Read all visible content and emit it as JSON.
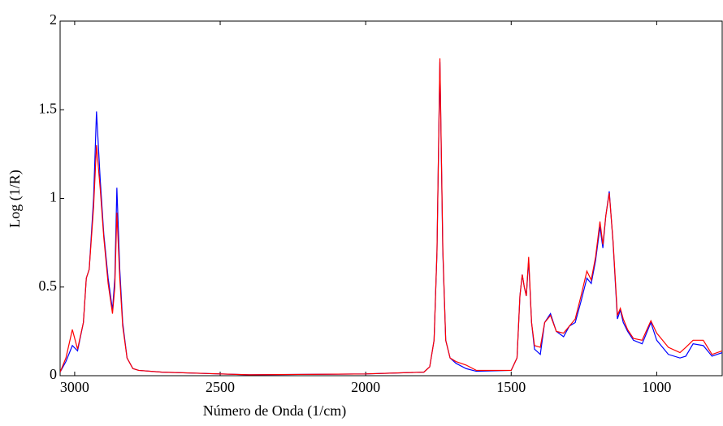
{
  "chart_data": {
    "type": "line",
    "xlabel": "Número de Onda (1/cm)",
    "ylabel": "Log (1/R)",
    "xlim": [
      3050,
      775
    ],
    "ylim": [
      0,
      2
    ],
    "xticks": [
      3000,
      2500,
      2000,
      1500,
      1000
    ],
    "yticks": [
      0,
      0.5,
      1,
      1.5,
      2
    ],
    "x": [
      3050,
      3030,
      3008,
      2990,
      2970,
      2960,
      2950,
      2935,
      2925,
      2912,
      2900,
      2885,
      2870,
      2862,
      2855,
      2845,
      2835,
      2820,
      2800,
      2780,
      2700,
      2400,
      2000,
      1800,
      1780,
      1765,
      1755,
      1745,
      1735,
      1725,
      1710,
      1690,
      1655,
      1620,
      1500,
      1480,
      1470,
      1462,
      1455,
      1448,
      1440,
      1430,
      1420,
      1400,
      1385,
      1365,
      1345,
      1320,
      1300,
      1280,
      1260,
      1240,
      1225,
      1210,
      1195,
      1185,
      1175,
      1163,
      1150,
      1135,
      1125,
      1115,
      1100,
      1080,
      1050,
      1020,
      1000,
      980,
      960,
      920,
      900,
      875,
      840,
      810,
      775
    ],
    "series": [
      {
        "name": "Blue",
        "color": "#0000ff",
        "values": [
          0.02,
          0.08,
          0.17,
          0.14,
          0.3,
          0.55,
          0.6,
          1.0,
          1.49,
          1.1,
          0.8,
          0.55,
          0.37,
          0.55,
          1.06,
          0.6,
          0.3,
          0.1,
          0.04,
          0.03,
          0.02,
          0.005,
          0.01,
          0.02,
          0.05,
          0.2,
          0.7,
          1.77,
          0.7,
          0.2,
          0.1,
          0.07,
          0.04,
          0.025,
          0.03,
          0.1,
          0.45,
          0.57,
          0.5,
          0.45,
          0.65,
          0.3,
          0.15,
          0.12,
          0.3,
          0.35,
          0.25,
          0.22,
          0.28,
          0.3,
          0.42,
          0.55,
          0.52,
          0.65,
          0.84,
          0.72,
          0.9,
          1.04,
          0.75,
          0.32,
          0.37,
          0.3,
          0.25,
          0.2,
          0.18,
          0.3,
          0.2,
          0.16,
          0.12,
          0.1,
          0.11,
          0.18,
          0.17,
          0.11,
          0.13
        ]
      },
      {
        "name": "Red",
        "color": "#ff0000",
        "values": [
          0.02,
          0.1,
          0.26,
          0.15,
          0.3,
          0.55,
          0.6,
          0.95,
          1.3,
          1.05,
          0.78,
          0.52,
          0.35,
          0.5,
          0.92,
          0.55,
          0.28,
          0.1,
          0.04,
          0.03,
          0.02,
          0.005,
          0.01,
          0.02,
          0.05,
          0.2,
          0.7,
          1.79,
          0.72,
          0.2,
          0.1,
          0.08,
          0.06,
          0.03,
          0.03,
          0.1,
          0.45,
          0.57,
          0.5,
          0.45,
          0.67,
          0.3,
          0.17,
          0.16,
          0.3,
          0.34,
          0.25,
          0.24,
          0.28,
          0.32,
          0.45,
          0.59,
          0.54,
          0.67,
          0.87,
          0.74,
          0.9,
          1.03,
          0.76,
          0.34,
          0.38,
          0.32,
          0.26,
          0.21,
          0.2,
          0.31,
          0.24,
          0.2,
          0.16,
          0.13,
          0.16,
          0.2,
          0.2,
          0.12,
          0.14
        ]
      }
    ]
  }
}
